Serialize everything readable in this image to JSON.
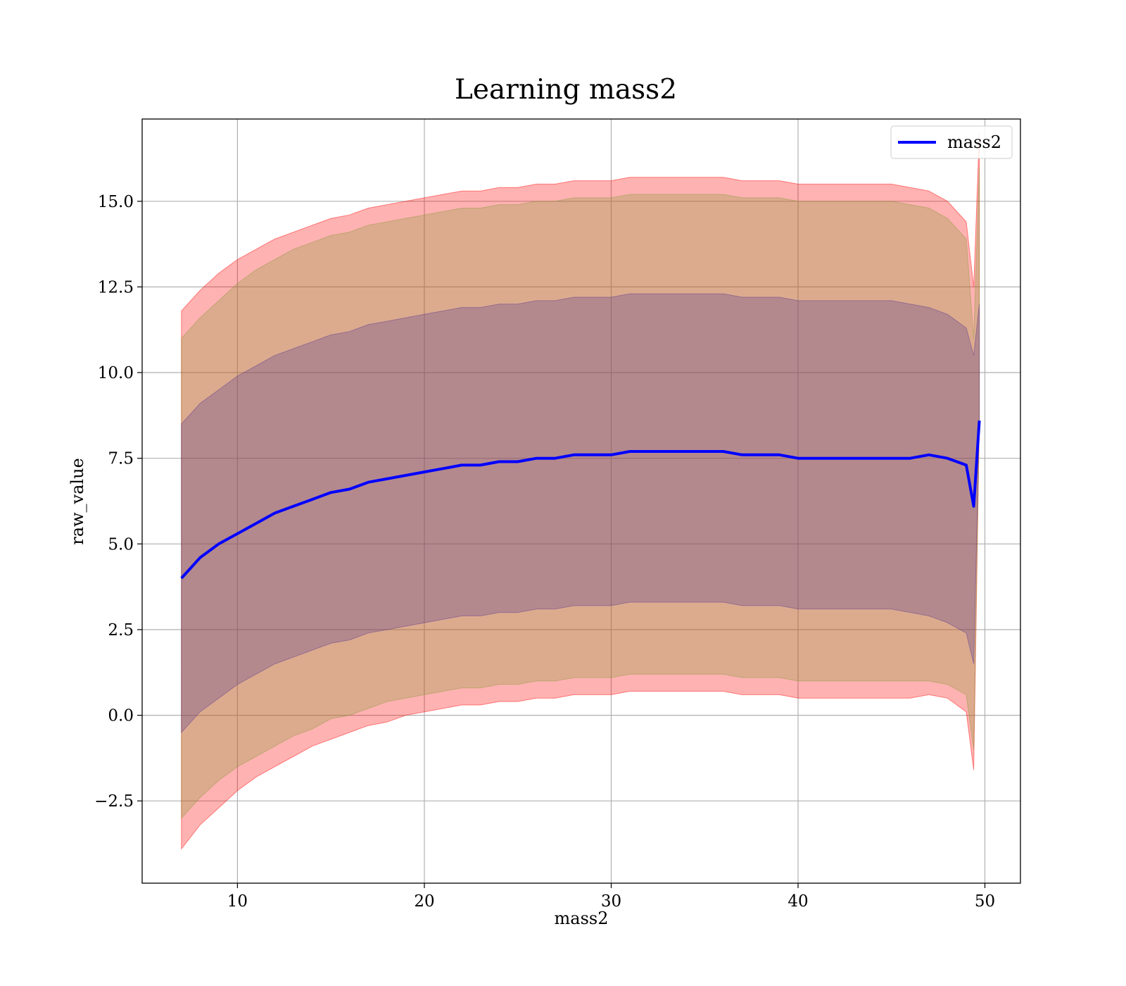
{
  "chart_data": {
    "type": "line",
    "title": "Learning mass2",
    "xlabel": "mass2",
    "ylabel": "raw_value",
    "xlim": [
      4.9,
      51.9
    ],
    "ylim": [
      -4.9,
      17.4
    ],
    "x_ticks": [
      10,
      20,
      30,
      40,
      50
    ],
    "x_tick_labels": [
      "10",
      "20",
      "30",
      "40",
      "50"
    ],
    "y_ticks": [
      -2.5,
      0.0,
      2.5,
      5.0,
      7.5,
      10.0,
      12.5,
      15.0
    ],
    "y_tick_labels": [
      "−2.5",
      "0.0",
      "2.5",
      "5.0",
      "7.5",
      "10.0",
      "12.5",
      "15.0"
    ],
    "grid": true,
    "legend": {
      "placement": "top-right",
      "entries": [
        "mass2"
      ]
    },
    "x": [
      7,
      8,
      9,
      10,
      11,
      12,
      13,
      14,
      15,
      16,
      17,
      18,
      19,
      20,
      21,
      22,
      23,
      24,
      25,
      26,
      27,
      28,
      29,
      30,
      31,
      32,
      33,
      34,
      35,
      36,
      37,
      38,
      39,
      40,
      41,
      42,
      43,
      44,
      45,
      46,
      47,
      48,
      49,
      49.4,
      49.7
    ],
    "series": [
      {
        "name": "mass2",
        "color": "#0000ff",
        "values": [
          4.0,
          4.6,
          5.0,
          5.3,
          5.6,
          5.9,
          6.1,
          6.3,
          6.5,
          6.6,
          6.8,
          6.9,
          7.0,
          7.1,
          7.2,
          7.3,
          7.3,
          7.4,
          7.4,
          7.5,
          7.5,
          7.6,
          7.6,
          7.6,
          7.7,
          7.7,
          7.7,
          7.7,
          7.7,
          7.7,
          7.6,
          7.6,
          7.6,
          7.5,
          7.5,
          7.5,
          7.5,
          7.5,
          7.5,
          7.5,
          7.6,
          7.5,
          7.3,
          6.1,
          8.6
        ]
      }
    ],
    "bands": [
      {
        "name": "outer",
        "color": "#ff0000",
        "lower": [
          -3.9,
          -3.2,
          -2.7,
          -2.2,
          -1.8,
          -1.5,
          -1.2,
          -0.9,
          -0.7,
          -0.5,
          -0.3,
          -0.2,
          0.0,
          0.1,
          0.2,
          0.3,
          0.3,
          0.4,
          0.4,
          0.5,
          0.5,
          0.6,
          0.6,
          0.6,
          0.7,
          0.7,
          0.7,
          0.7,
          0.7,
          0.7,
          0.6,
          0.6,
          0.6,
          0.5,
          0.5,
          0.5,
          0.5,
          0.5,
          0.5,
          0.5,
          0.6,
          0.5,
          0.1,
          -1.6,
          8.6
        ],
        "upper": [
          11.8,
          12.4,
          12.9,
          13.3,
          13.6,
          13.9,
          14.1,
          14.3,
          14.5,
          14.6,
          14.8,
          14.9,
          15.0,
          15.1,
          15.2,
          15.3,
          15.3,
          15.4,
          15.4,
          15.5,
          15.5,
          15.6,
          15.6,
          15.6,
          15.7,
          15.7,
          15.7,
          15.7,
          15.7,
          15.7,
          15.6,
          15.6,
          15.6,
          15.5,
          15.5,
          15.5,
          15.5,
          15.5,
          15.5,
          15.4,
          15.3,
          15.0,
          14.4,
          12.5,
          17.0
        ]
      },
      {
        "name": "middle",
        "color": "#8a9a3a",
        "lower": [
          -3.0,
          -2.4,
          -1.9,
          -1.5,
          -1.2,
          -0.9,
          -0.6,
          -0.4,
          -0.1,
          0.0,
          0.2,
          0.4,
          0.5,
          0.6,
          0.7,
          0.8,
          0.8,
          0.9,
          0.9,
          1.0,
          1.0,
          1.1,
          1.1,
          1.1,
          1.2,
          1.2,
          1.2,
          1.2,
          1.2,
          1.2,
          1.1,
          1.1,
          1.1,
          1.0,
          1.0,
          1.0,
          1.0,
          1.0,
          1.0,
          1.0,
          1.0,
          0.9,
          0.6,
          -1.0,
          8.6
        ],
        "upper": [
          11.0,
          11.6,
          12.1,
          12.6,
          13.0,
          13.3,
          13.6,
          13.8,
          14.0,
          14.1,
          14.3,
          14.4,
          14.5,
          14.6,
          14.7,
          14.8,
          14.8,
          14.9,
          14.9,
          15.0,
          15.0,
          15.1,
          15.1,
          15.1,
          15.2,
          15.2,
          15.2,
          15.2,
          15.2,
          15.2,
          15.1,
          15.1,
          15.1,
          15.0,
          15.0,
          15.0,
          15.0,
          15.0,
          15.0,
          14.9,
          14.8,
          14.5,
          13.9,
          11.0,
          16.0
        ]
      },
      {
        "name": "inner",
        "color": "#5b3a8f",
        "lower": [
          -0.5,
          0.1,
          0.5,
          0.9,
          1.2,
          1.5,
          1.7,
          1.9,
          2.1,
          2.2,
          2.4,
          2.5,
          2.6,
          2.7,
          2.8,
          2.9,
          2.9,
          3.0,
          3.0,
          3.1,
          3.1,
          3.2,
          3.2,
          3.2,
          3.3,
          3.3,
          3.3,
          3.3,
          3.3,
          3.3,
          3.2,
          3.2,
          3.2,
          3.1,
          3.1,
          3.1,
          3.1,
          3.1,
          3.1,
          3.0,
          2.9,
          2.7,
          2.4,
          1.5,
          8.6
        ],
        "upper": [
          8.5,
          9.1,
          9.5,
          9.9,
          10.2,
          10.5,
          10.7,
          10.9,
          11.1,
          11.2,
          11.4,
          11.5,
          11.6,
          11.7,
          11.8,
          11.9,
          11.9,
          12.0,
          12.0,
          12.1,
          12.1,
          12.2,
          12.2,
          12.2,
          12.3,
          12.3,
          12.3,
          12.3,
          12.3,
          12.3,
          12.2,
          12.2,
          12.2,
          12.1,
          12.1,
          12.1,
          12.1,
          12.1,
          12.1,
          12.0,
          11.9,
          11.7,
          11.3,
          10.5,
          12.0
        ]
      }
    ]
  }
}
